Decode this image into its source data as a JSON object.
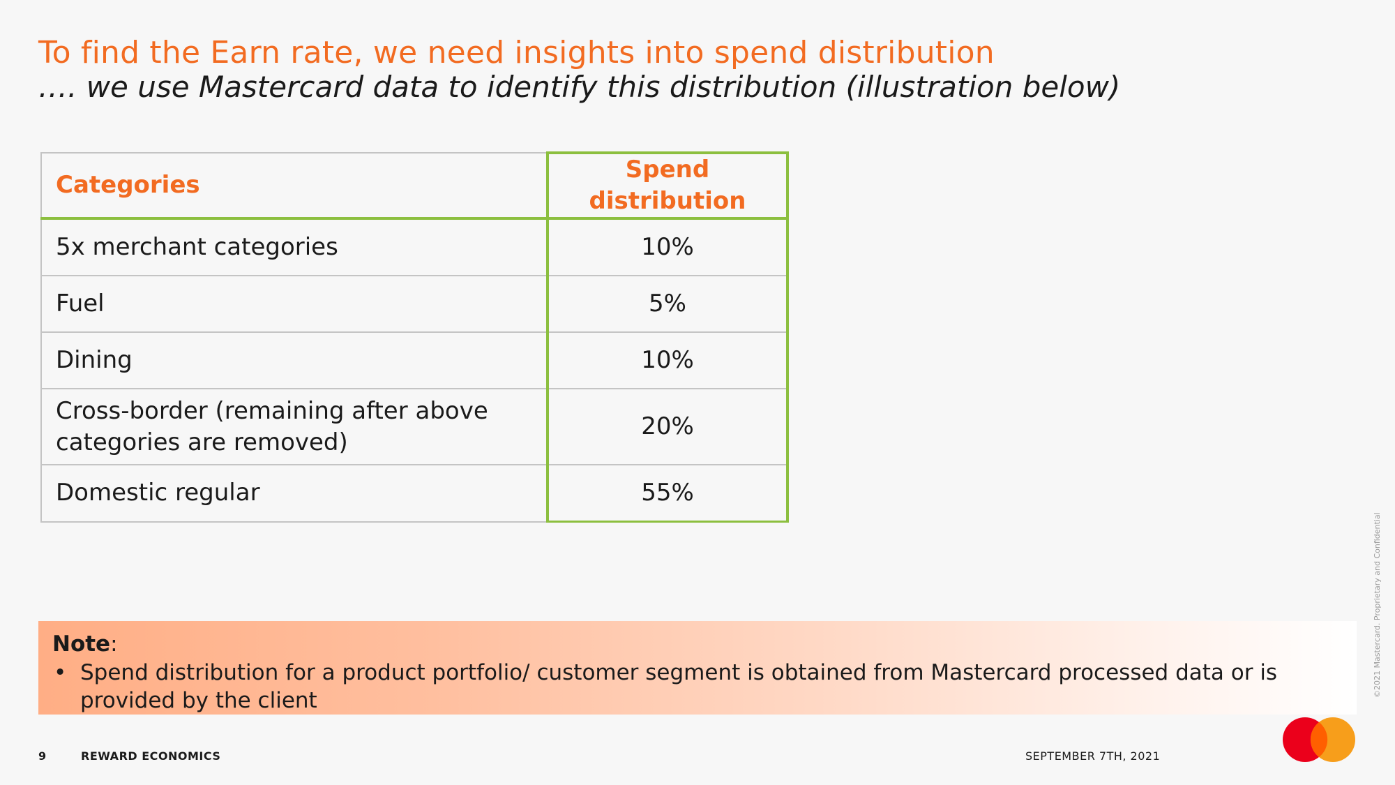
{
  "header": {
    "title": "To find the Earn rate, we need insights into spend distribution",
    "subtitle": "…. we use Mastercard data to identify this distribution (illustration below)"
  },
  "table": {
    "headers": [
      "Categories",
      "Spend distribution"
    ],
    "rows": [
      {
        "category": "5x merchant categories",
        "value": "10%"
      },
      {
        "category": "Fuel",
        "value": "5%"
      },
      {
        "category": "Dining",
        "value": "10%"
      },
      {
        "category": "Cross-border (remaining after above categories are removed)",
        "value": "20%"
      },
      {
        "category": "Domestic regular",
        "value": "55%"
      }
    ]
  },
  "note": {
    "label": "Note",
    "suffix": ":",
    "bullet": "•",
    "items": [
      "Spend distribution for a product portfolio/ customer segment is obtained from Mastercard processed data or is provided by the client"
    ]
  },
  "footer": {
    "page_number": "9",
    "section": "REWARD ECONOMICS",
    "date": "SEPTEMBER 7TH, 2021",
    "copyright": "©2021 Mastercard. Proprietary and Confidential"
  },
  "colors": {
    "accent": "#f26b21",
    "table_highlight": "#8cbf3f",
    "logo_red": "#eb001b",
    "logo_orange": "#f79e1b",
    "logo_overlap": "#ff5f00"
  },
  "logo": {
    "name": "mastercard-logo-icon"
  }
}
